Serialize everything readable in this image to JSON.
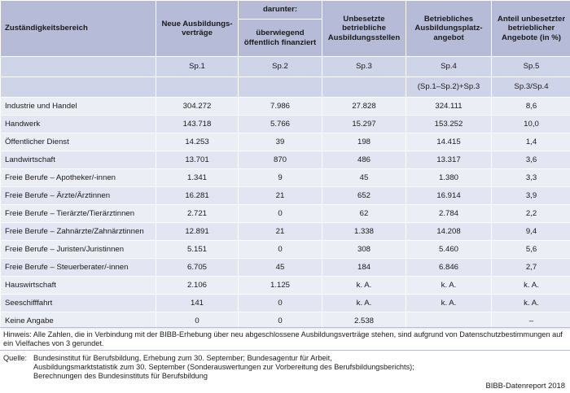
{
  "header": {
    "col0": "Zuständigkeitsbereich",
    "col1": "Neue Ausbildungs-\nverträge",
    "col2_top": "darunter:",
    "col2_sub": "überwiegend\nöffentlich finanziert",
    "col3": "Unbesetzte\nbetriebliche\nAusbildungsstellen",
    "col4": "Betriebliches\nAusbildungsplatz-\nangebot",
    "col5": "Anteil unbesetzter\nbetrieblicher\nAngebote (in %)"
  },
  "spalten": [
    "Sp.1",
    "Sp.2",
    "Sp.3",
    "Sp.4",
    "Sp.5"
  ],
  "formeln": [
    "",
    "",
    "",
    "(Sp.1–Sp.2)+Sp.3",
    "Sp.3/Sp.4"
  ],
  "rows": [
    {
      "label": "Industrie und Handel",
      "v": [
        "304.272",
        "7.986",
        "27.828",
        "324.111",
        "8,6"
      ]
    },
    {
      "label": "Handwerk",
      "v": [
        "143.718",
        "5.766",
        "15.297",
        "153.252",
        "10,0"
      ]
    },
    {
      "label": "Öffentlicher Dienst",
      "v": [
        "14.253",
        "39",
        "198",
        "14.415",
        "1,4"
      ]
    },
    {
      "label": "Landwirtschaft",
      "v": [
        "13.701",
        "870",
        "486",
        "13.317",
        "3,6"
      ]
    },
    {
      "label": "Freie Berufe – Apotheker/-innen",
      "v": [
        "1.341",
        "9",
        "45",
        "1.380",
        "3,3"
      ]
    },
    {
      "label": "Freie Berufe – Ärzte/Ärztinnen",
      "v": [
        "16.281",
        "21",
        "652",
        "16.914",
        "3,9"
      ]
    },
    {
      "label": "Freie Berufe – Tierärzte/Tierärztinnen",
      "v": [
        "2.721",
        "0",
        "62",
        "2.784",
        "2,2"
      ]
    },
    {
      "label": "Freie Berufe – Zahnärzte/Zahnärztinnen",
      "v": [
        "12.891",
        "21",
        "1.338",
        "14.208",
        "9,4"
      ]
    },
    {
      "label": "Freie Berufe – Juristen/Juristinnen",
      "v": [
        "5.151",
        "0",
        "308",
        "5.460",
        "5,6"
      ]
    },
    {
      "label": "Freie Berufe – Steuerberater/-innen",
      "v": [
        "6.705",
        "45",
        "184",
        "6.846",
        "2,7"
      ]
    },
    {
      "label": "Hauswirtschaft",
      "v": [
        "2.106",
        "1.125",
        "k. A.",
        "k. A.",
        "k. A."
      ]
    },
    {
      "label": "Seeschifffahrt",
      "v": [
        "141",
        "0",
        "k. A.",
        "k. A.",
        "k. A."
      ]
    },
    {
      "label": "Keine Angabe",
      "v": [
        "0",
        "0",
        "2.538",
        "",
        "–"
      ]
    }
  ],
  "hinweis": "Hinweis: Alle Zahlen, die in Verbindung mit der BIBB-Erhebung über neu abgeschlossene Ausbildungsverträge stehen, sind aufgrund von Datenschutzbestimmungen auf ein Vielfaches von 3 gerundet.",
  "quelle_label": "Quelle:",
  "quelle_lines": [
    "Bundesinstitut für Berufsbildung, Erhebung zum 30. September; Bundesagentur für Arbeit,",
    "Ausbildungsmarktstatistik zum 30. September (Sonderauswertungen zur Vorbereitung des Berufsbildungsberichts);",
    "Berechnungen des Bundesinstituts für Berufsbildung"
  ],
  "footer": "BIBB-Datenreport 2018"
}
